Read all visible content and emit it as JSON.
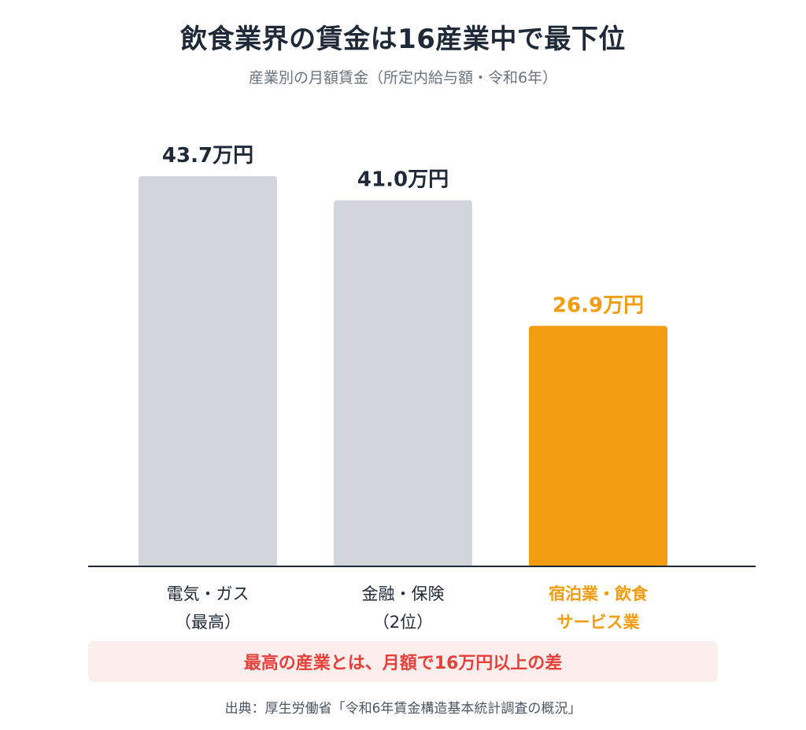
{
  "chart_data": {
    "type": "bar",
    "title": "飲食業界の賃金は16産業中で最下位",
    "subtitle": "産業別の月額賃金（所定内給与額・令和6年）",
    "categories": [
      [
        "電気・ガス",
        "（最高）"
      ],
      [
        "金融・保険",
        "（2位）"
      ],
      [
        "宿泊業・飲食",
        "サービス業"
      ]
    ],
    "values": [
      43.7,
      41.0,
      26.9
    ],
    "value_labels": [
      "43.7万円",
      "41.0万円",
      "26.9万円"
    ],
    "unit": "万円",
    "ylim": [
      0,
      43.7
    ],
    "grid": false,
    "highlight_index": 2,
    "colors": {
      "bar": "#d2d5dc",
      "highlight": "#f29c11",
      "label_dark": "#1f2937",
      "axis": "#1f2937"
    }
  },
  "callout": {
    "text": "最高の産業とは、月額で16万円以上の差",
    "color": "#e5413b",
    "background": "#fdeeee"
  },
  "source": "出典：厚生労働省「令和6年賃金構造基本統計調査の概況」"
}
